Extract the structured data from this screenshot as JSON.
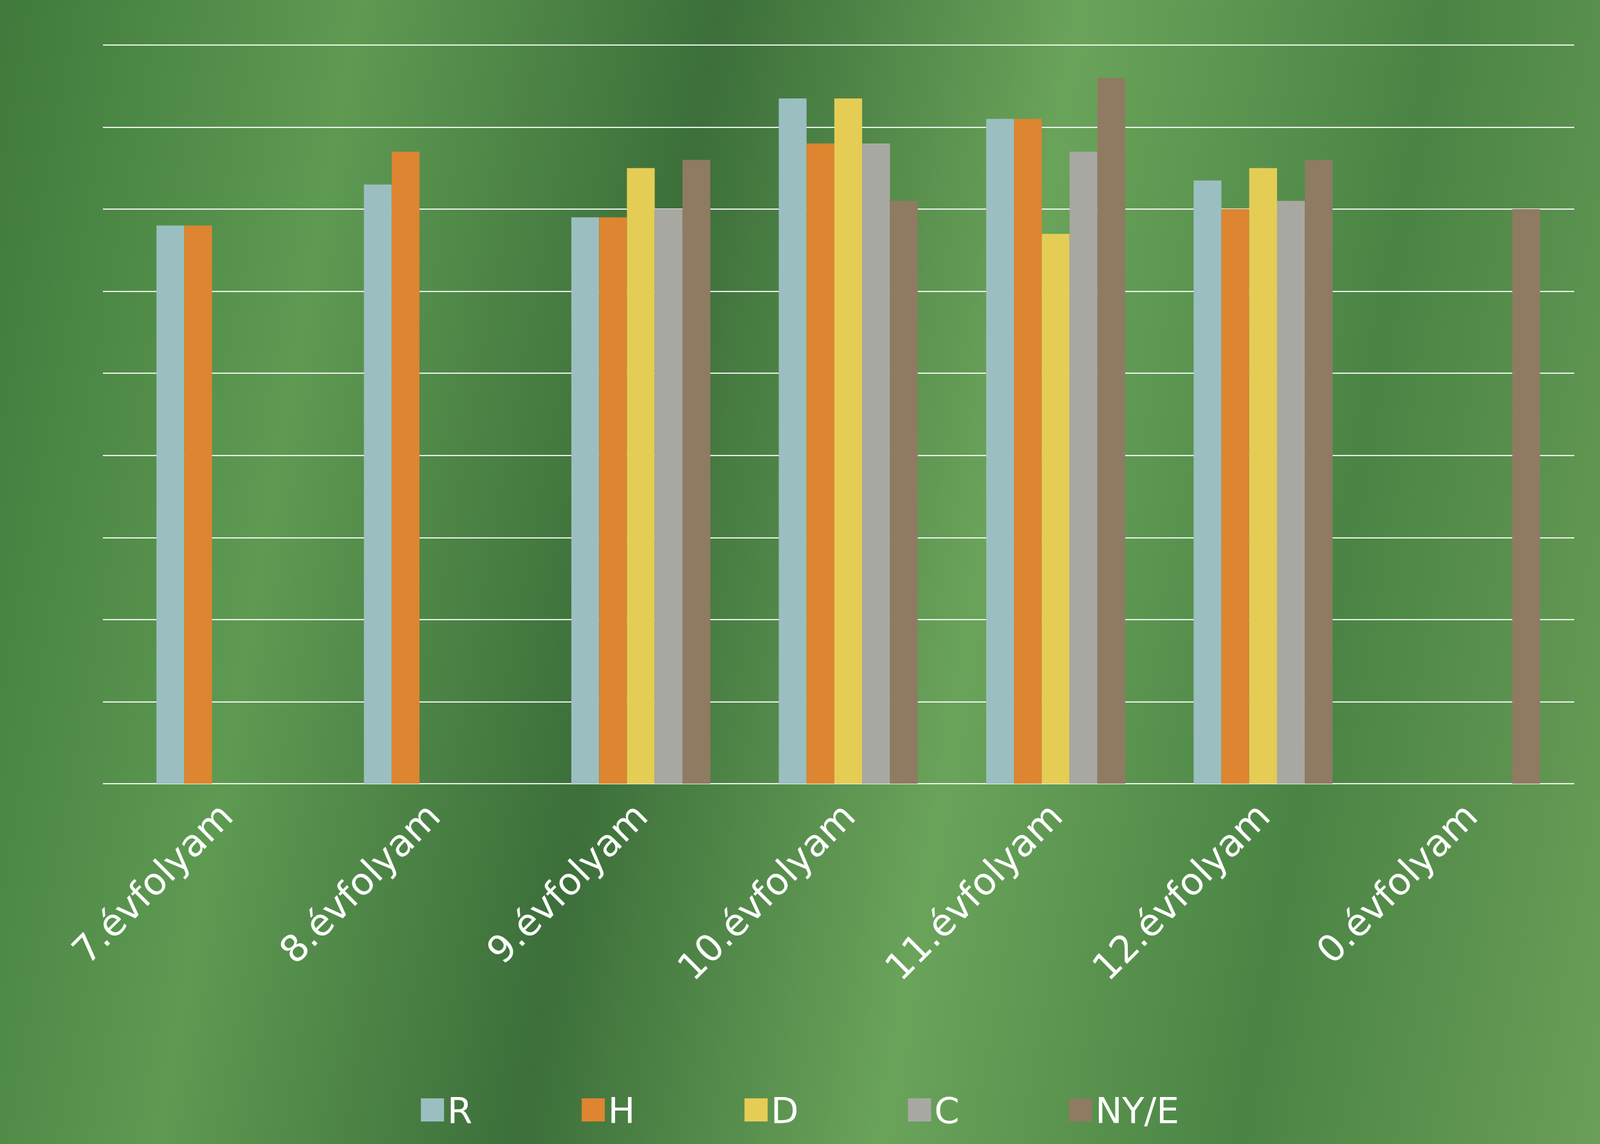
{
  "chart_data": {
    "type": "bar",
    "categories": [
      "7.évfolyam",
      "8.évfolyam",
      "9.évfolyam",
      "10.évfolyam",
      "11.évfolyam",
      "12.évfolyam",
      "0.évfolyam"
    ],
    "series": [
      {
        "name": "R",
        "color": "#9bbfc0",
        "values": [
          6.8,
          7.3,
          6.9,
          8.35,
          8.1,
          7.35,
          null
        ]
      },
      {
        "name": "H",
        "color": "#dd8530",
        "values": [
          6.8,
          7.7,
          6.9,
          7.8,
          8.1,
          7.0,
          null
        ]
      },
      {
        "name": "D",
        "color": "#e5cd55",
        "values": [
          null,
          null,
          7.5,
          8.35,
          6.7,
          7.5,
          null
        ]
      },
      {
        "name": "C",
        "color": "#a8a8a3",
        "values": [
          null,
          null,
          7.0,
          7.8,
          7.7,
          7.1,
          null
        ]
      },
      {
        "name": "NY/E",
        "color": "#8f7b62",
        "values": [
          null,
          null,
          7.6,
          7.1,
          8.6,
          7.6,
          7.0
        ]
      }
    ],
    "ylim": [
      0,
      9
    ],
    "yticks": [
      0,
      1,
      2,
      3,
      4,
      5,
      6,
      7,
      8,
      9
    ],
    "grid": true,
    "legend": "bottom",
    "tick_labels": "x"
  }
}
